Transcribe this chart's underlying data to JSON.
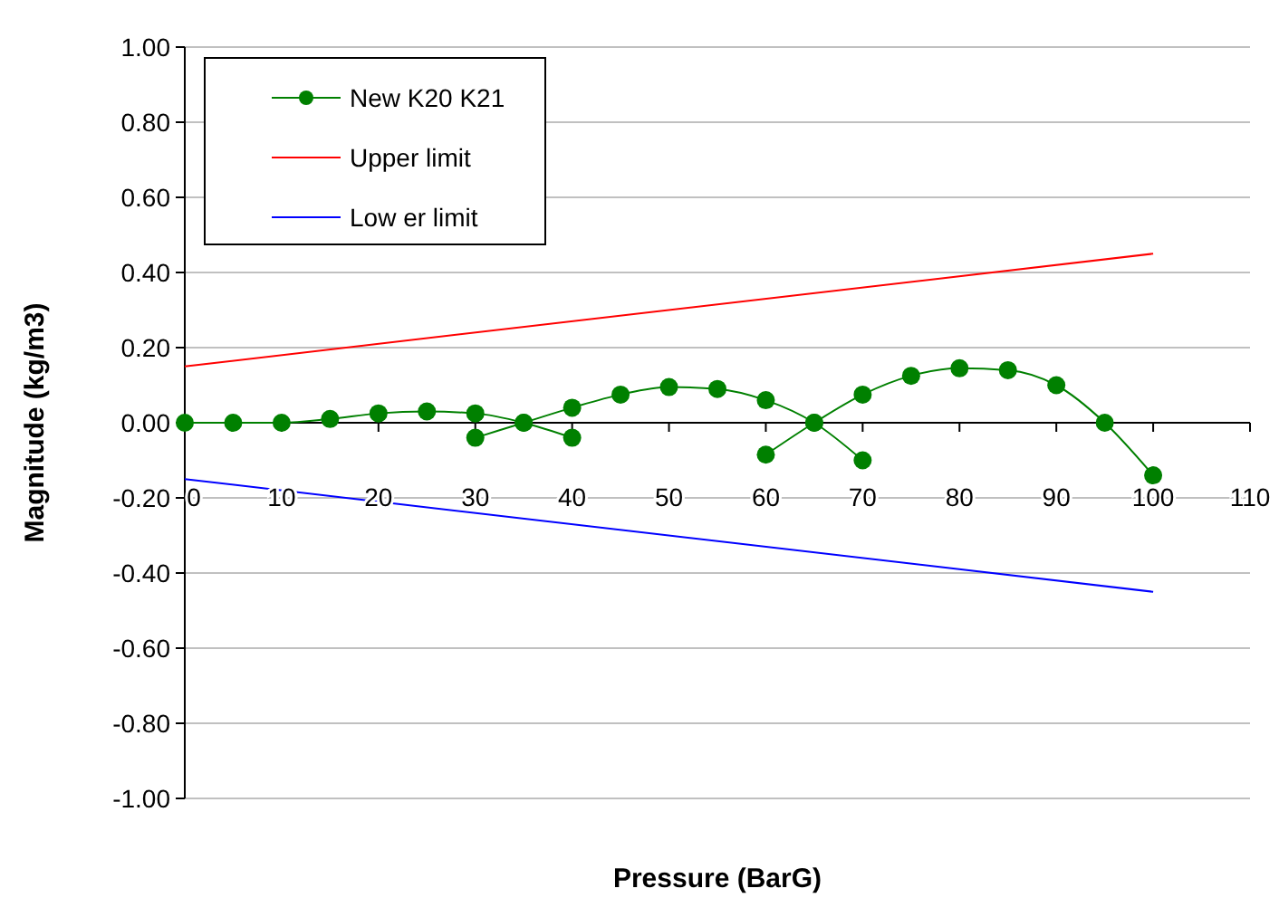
{
  "chart_data": {
    "type": "line",
    "xlabel": "Pressure (BarG)",
    "ylabel": "Magnitude (kg/m3)",
    "xlim": [
      0,
      110
    ],
    "xticks": [
      0,
      10,
      20,
      30,
      40,
      50,
      60,
      70,
      80,
      90,
      100,
      110
    ],
    "ylim": [
      -1,
      1
    ],
    "yticks": [
      {
        "value": -1,
        "label": "-1.00"
      },
      {
        "value": -0.8,
        "label": "-0.80"
      },
      {
        "value": -0.6,
        "label": "-0.60"
      },
      {
        "value": -0.4,
        "label": "-0.40"
      },
      {
        "value": -0.2,
        "label": "-0.20"
      },
      {
        "value": 0,
        "label": "0.00"
      },
      {
        "value": 0.2,
        "label": "0.20"
      },
      {
        "value": 0.4,
        "label": "0.40"
      },
      {
        "value": 0.6,
        "label": "0.60"
      },
      {
        "value": 0.8,
        "label": "0.80"
      },
      {
        "value": 1,
        "label": "1.00"
      }
    ],
    "grid": "y",
    "legend": "top left",
    "series": [
      {
        "name": "New  K20 K21",
        "color": "#008000",
        "marker": "circle",
        "x": [
          0,
          5,
          10,
          15,
          20,
          25,
          30,
          35,
          40,
          null,
          30,
          35,
          40,
          45,
          50,
          55,
          60,
          65,
          70,
          null,
          60,
          65,
          70,
          75,
          80,
          85,
          90,
          95,
          100
        ],
        "values": [
          0,
          0,
          0,
          0.01,
          0.025,
          0.03,
          0.025,
          0,
          -0.04,
          null,
          -0.04,
          0,
          0.04,
          0.075,
          0.095,
          0.09,
          0.06,
          0,
          -0.1,
          null,
          -0.085,
          0,
          0.075,
          0.125,
          0.145,
          0.14,
          0.1,
          0,
          -0.14
        ]
      },
      {
        "name": "Upper limit",
        "color": "#ff0000",
        "marker": "none",
        "x": [
          0,
          100
        ],
        "values": [
          0.15,
          0.45
        ]
      },
      {
        "name": "Low er limit",
        "color": "#0000ff",
        "marker": "none",
        "x": [
          0,
          100
        ],
        "values": [
          -0.15,
          -0.45
        ]
      }
    ]
  }
}
